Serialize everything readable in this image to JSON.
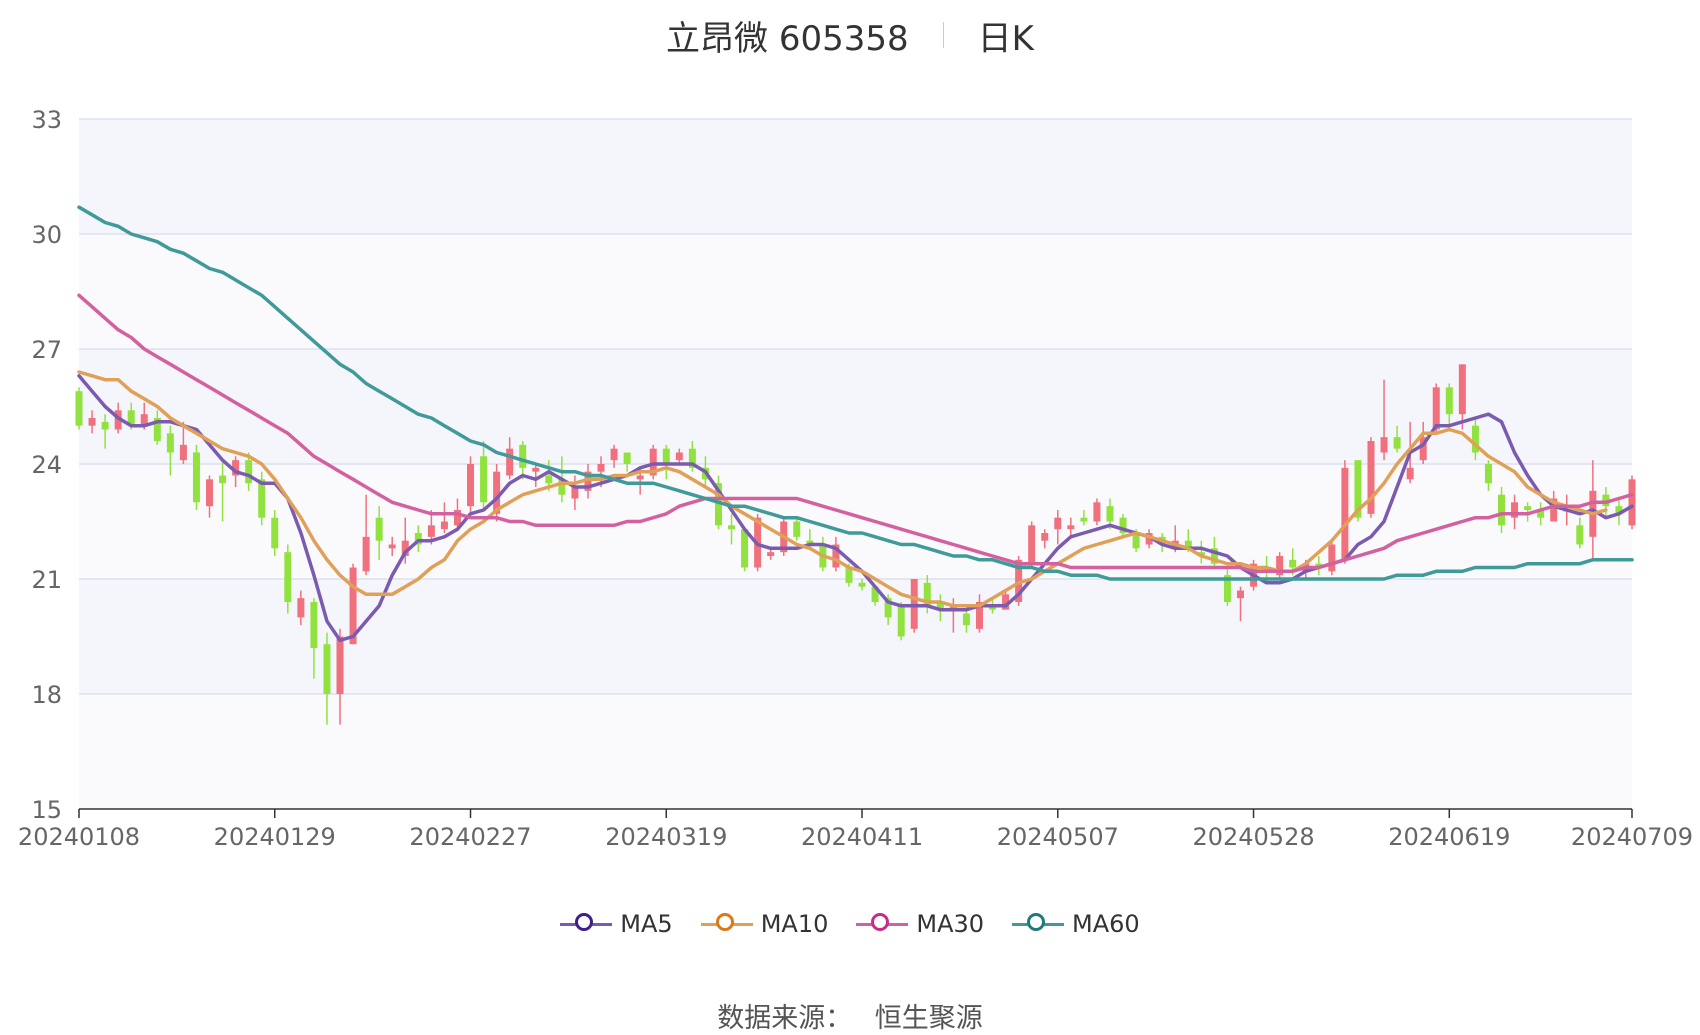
{
  "title": {
    "name": "立昂微 605358",
    "type": "日K"
  },
  "source": {
    "label": "数据来源：",
    "value": "恒生聚源"
  },
  "chart_data": {
    "type": "candlestick",
    "y_ticks": [
      "33",
      "30",
      "27",
      "24",
      "21",
      "18",
      "15"
    ],
    "ylim": [
      15,
      33
    ],
    "x_ticks": [
      {
        "i": 0,
        "label": "20240108"
      },
      {
        "i": 15,
        "label": "20240129"
      },
      {
        "i": 30,
        "label": "20240227"
      },
      {
        "i": 45,
        "label": "20240319"
      },
      {
        "i": 60,
        "label": "20240411"
      },
      {
        "i": 75,
        "label": "20240507"
      },
      {
        "i": 90,
        "label": "20240528"
      },
      {
        "i": 105,
        "label": "20240619"
      },
      {
        "i": 119,
        "label": "20240709"
      }
    ],
    "grid": true,
    "legend_position": "bottom",
    "colors": {
      "up": "#f0717d",
      "down": "#91e23e",
      "grid": "#dde0ef",
      "band": "#f5f6fb"
    },
    "candles": [
      [
        25.9,
        25.0,
        26.0,
        24.9
      ],
      [
        25.0,
        25.2,
        25.4,
        24.8
      ],
      [
        25.1,
        24.9,
        25.3,
        24.4
      ],
      [
        24.9,
        25.4,
        25.6,
        24.8
      ],
      [
        25.4,
        25.0,
        25.6,
        24.9
      ],
      [
        25.0,
        25.3,
        25.6,
        24.9
      ],
      [
        25.2,
        24.6,
        25.4,
        24.5
      ],
      [
        24.8,
        24.3,
        25.0,
        23.7
      ],
      [
        24.1,
        24.5,
        25.1,
        24.0
      ],
      [
        24.3,
        23.0,
        24.5,
        22.8
      ],
      [
        22.9,
        23.6,
        23.7,
        22.6
      ],
      [
        23.7,
        23.5,
        24.1,
        22.5
      ],
      [
        23.7,
        24.1,
        24.2,
        23.4
      ],
      [
        24.1,
        23.5,
        24.3,
        23.3
      ],
      [
        23.6,
        22.6,
        23.8,
        22.4
      ],
      [
        22.6,
        21.8,
        22.8,
        21.6
      ],
      [
        21.7,
        20.4,
        21.9,
        20.1
      ],
      [
        20.0,
        20.5,
        20.7,
        19.8
      ],
      [
        20.4,
        19.2,
        20.5,
        18.4
      ],
      [
        19.3,
        18.0,
        19.6,
        17.2
      ],
      [
        18.0,
        19.5,
        19.7,
        17.2
      ],
      [
        19.3,
        21.3,
        21.4,
        19.3
      ],
      [
        21.2,
        22.1,
        23.2,
        21.1
      ],
      [
        22.6,
        22.0,
        22.9,
        21.5
      ],
      [
        21.8,
        21.9,
        22.1,
        21.6
      ],
      [
        21.6,
        22.0,
        22.6,
        21.4
      ],
      [
        22.2,
        21.9,
        22.4,
        21.7
      ],
      [
        22.1,
        22.4,
        22.8,
        21.9
      ],
      [
        22.3,
        22.5,
        23.0,
        22.2
      ],
      [
        22.4,
        22.8,
        23.1,
        22.3
      ],
      [
        22.9,
        24.0,
        24.2,
        22.7
      ],
      [
        24.2,
        23.0,
        24.6,
        22.8
      ],
      [
        22.7,
        23.8,
        24.0,
        22.5
      ],
      [
        23.7,
        24.4,
        24.7,
        23.6
      ],
      [
        24.5,
        23.9,
        24.6,
        23.6
      ],
      [
        23.8,
        23.9,
        24.0,
        23.4
      ],
      [
        23.7,
        23.5,
        24.1,
        23.3
      ],
      [
        23.6,
        23.2,
        24.2,
        23.0
      ],
      [
        23.1,
        23.4,
        23.7,
        22.8
      ],
      [
        23.3,
        23.8,
        24.0,
        23.1
      ],
      [
        23.8,
        24.0,
        24.2,
        23.4
      ],
      [
        24.1,
        24.4,
        24.5,
        23.9
      ],
      [
        24.3,
        24.0,
        24.3,
        23.8
      ],
      [
        23.6,
        23.7,
        23.9,
        23.2
      ],
      [
        23.7,
        24.4,
        24.5,
        23.6
      ],
      [
        24.4,
        24.0,
        24.5,
        23.6
      ],
      [
        24.1,
        24.3,
        24.4,
        24.0
      ],
      [
        24.4,
        23.9,
        24.6,
        23.8
      ],
      [
        23.9,
        23.6,
        24.2,
        23.4
      ],
      [
        23.5,
        22.4,
        23.7,
        22.3
      ],
      [
        22.4,
        22.3,
        22.7,
        21.9
      ],
      [
        22.3,
        21.3,
        22.3,
        21.2
      ],
      [
        21.3,
        22.6,
        22.7,
        21.2
      ],
      [
        21.6,
        21.7,
        21.8,
        21.5
      ],
      [
        21.7,
        22.5,
        22.6,
        21.6
      ],
      [
        22.5,
        22.1,
        22.6,
        22.0
      ],
      [
        22.0,
        21.9,
        22.3,
        21.8
      ],
      [
        21.9,
        21.3,
        22.1,
        21.2
      ],
      [
        21.3,
        21.9,
        22.1,
        21.2
      ],
      [
        21.3,
        20.9,
        21.4,
        20.8
      ],
      [
        20.9,
        20.8,
        21.0,
        20.7
      ],
      [
        20.8,
        20.4,
        20.8,
        20.3
      ],
      [
        20.5,
        20.0,
        20.6,
        19.8
      ],
      [
        20.3,
        19.5,
        20.4,
        19.4
      ],
      [
        19.7,
        21.0,
        21.0,
        19.6
      ],
      [
        20.9,
        20.3,
        21.1,
        20.1
      ],
      [
        20.4,
        20.2,
        20.6,
        19.9
      ],
      [
        20.2,
        20.3,
        20.5,
        19.6
      ],
      [
        20.1,
        19.8,
        20.3,
        19.6
      ],
      [
        19.7,
        20.4,
        20.6,
        19.6
      ],
      [
        20.3,
        20.2,
        20.5,
        20.1
      ],
      [
        20.2,
        20.6,
        20.7,
        20.2
      ],
      [
        20.4,
        21.5,
        21.6,
        20.3
      ],
      [
        21.4,
        22.4,
        22.5,
        21.3
      ],
      [
        22.0,
        22.2,
        22.3,
        21.8
      ],
      [
        22.3,
        22.6,
        22.8,
        21.9
      ],
      [
        22.3,
        22.4,
        22.6,
        22.1
      ],
      [
        22.6,
        22.5,
        22.8,
        22.4
      ],
      [
        22.5,
        23.0,
        23.1,
        22.4
      ],
      [
        22.9,
        22.5,
        23.1,
        22.3
      ],
      [
        22.6,
        22.2,
        22.7,
        22.1
      ],
      [
        22.2,
        21.8,
        22.3,
        21.7
      ],
      [
        21.9,
        22.2,
        22.3,
        21.8
      ],
      [
        22.1,
        21.9,
        22.2,
        21.7
      ],
      [
        21.8,
        22.0,
        22.4,
        21.7
      ],
      [
        22.0,
        21.8,
        22.3,
        21.7
      ],
      [
        21.7,
        21.6,
        22.0,
        21.4
      ],
      [
        21.8,
        21.4,
        22.1,
        21.3
      ],
      [
        21.1,
        20.4,
        21.3,
        20.3
      ],
      [
        20.5,
        20.7,
        20.8,
        19.9
      ],
      [
        20.8,
        21.4,
        21.5,
        20.7
      ],
      [
        21.3,
        21.2,
        21.6,
        21.0
      ],
      [
        21.1,
        21.6,
        21.7,
        21.0
      ],
      [
        21.5,
        21.3,
        21.8,
        21.1
      ],
      [
        21.2,
        21.4,
        21.5,
        21.0
      ],
      [
        21.4,
        21.3,
        21.6,
        21.1
      ],
      [
        21.2,
        21.9,
        22.0,
        21.1
      ],
      [
        21.5,
        23.9,
        24.1,
        21.4
      ],
      [
        24.1,
        22.6,
        24.1,
        22.5
      ],
      [
        22.7,
        24.6,
        24.7,
        22.6
      ],
      [
        24.3,
        24.7,
        26.2,
        24.1
      ],
      [
        24.7,
        24.4,
        25.0,
        24.3
      ],
      [
        23.6,
        23.9,
        25.1,
        23.5
      ],
      [
        24.1,
        24.7,
        25.1,
        24.0
      ],
      [
        24.9,
        26.0,
        26.1,
        24.8
      ],
      [
        26.0,
        25.3,
        26.1,
        24.9
      ],
      [
        25.3,
        26.6,
        26.6,
        24.9
      ],
      [
        25.0,
        24.3,
        25.2,
        24.1
      ],
      [
        24.0,
        23.5,
        24.1,
        23.3
      ],
      [
        23.2,
        22.4,
        23.4,
        22.2
      ],
      [
        22.6,
        23.0,
        23.2,
        22.3
      ],
      [
        22.9,
        22.8,
        23.0,
        22.5
      ],
      [
        22.8,
        22.6,
        23.0,
        22.4
      ],
      [
        22.5,
        23.1,
        23.3,
        22.5
      ],
      [
        22.8,
        22.8,
        23.2,
        22.4
      ],
      [
        22.4,
        21.9,
        22.6,
        21.8
      ],
      [
        22.1,
        23.3,
        24.1,
        21.5
      ],
      [
        23.2,
        22.9,
        23.4,
        22.6
      ],
      [
        22.9,
        22.7,
        23.1,
        22.4
      ],
      [
        22.4,
        23.6,
        23.7,
        22.3
      ]
    ],
    "series": [
      {
        "name": "MA5",
        "color": "#7b5bb0",
        "values": [
          26.3,
          25.9,
          25.5,
          25.2,
          25.0,
          25.0,
          25.1,
          25.1,
          25.0,
          24.9,
          24.5,
          24.1,
          23.8,
          23.7,
          23.5,
          23.5,
          23.1,
          22.2,
          21.1,
          19.9,
          19.4,
          19.5,
          19.9,
          20.3,
          21.1,
          21.7,
          22.0,
          22.0,
          22.1,
          22.3,
          22.7,
          22.8,
          23.1,
          23.5,
          23.7,
          23.6,
          23.8,
          23.6,
          23.4,
          23.4,
          23.5,
          23.6,
          23.7,
          23.9,
          24.0,
          24.0,
          24.0,
          24.0,
          23.8,
          23.3,
          22.8,
          22.3,
          21.9,
          21.8,
          21.8,
          21.8,
          21.9,
          21.9,
          21.8,
          21.5,
          21.2,
          20.8,
          20.4,
          20.3,
          20.3,
          20.3,
          20.2,
          20.2,
          20.2,
          20.3,
          20.3,
          20.3,
          20.6,
          21.0,
          21.4,
          21.8,
          22.1,
          22.2,
          22.3,
          22.4,
          22.3,
          22.2,
          22.1,
          21.9,
          21.8,
          21.8,
          21.8,
          21.7,
          21.6,
          21.3,
          21.1,
          20.9,
          20.9,
          21.0,
          21.2,
          21.3,
          21.4,
          21.5,
          21.9,
          22.1,
          22.5,
          23.4,
          24.3,
          24.5,
          25.0,
          25.0,
          25.1,
          25.2,
          25.3,
          25.1,
          24.3,
          23.7,
          23.2,
          22.9,
          22.8,
          22.7,
          22.8,
          22.6,
          22.7,
          22.9
        ]
      },
      {
        "name": "MA10",
        "color": "#e0a058",
        "values": [
          26.4,
          26.3,
          26.2,
          26.2,
          25.9,
          25.7,
          25.5,
          25.2,
          25.0,
          24.8,
          24.6,
          24.4,
          24.3,
          24.2,
          24.0,
          23.6,
          23.1,
          22.6,
          22.0,
          21.5,
          21.1,
          20.8,
          20.6,
          20.6,
          20.6,
          20.8,
          21.0,
          21.3,
          21.5,
          22.0,
          22.3,
          22.5,
          22.8,
          23.0,
          23.2,
          23.3,
          23.4,
          23.5,
          23.5,
          23.6,
          23.6,
          23.7,
          23.7,
          23.8,
          23.8,
          23.9,
          23.8,
          23.6,
          23.4,
          23.2,
          22.9,
          22.7,
          22.5,
          22.3,
          22.1,
          21.9,
          21.8,
          21.6,
          21.5,
          21.3,
          21.2,
          21.0,
          20.8,
          20.6,
          20.5,
          20.4,
          20.4,
          20.3,
          20.3,
          20.3,
          20.5,
          20.7,
          20.9,
          21.0,
          21.2,
          21.4,
          21.6,
          21.8,
          21.9,
          22.0,
          22.1,
          22.2,
          22.1,
          22.0,
          21.9,
          21.8,
          21.6,
          21.5,
          21.4,
          21.4,
          21.3,
          21.3,
          21.2,
          21.2,
          21.4,
          21.7,
          22.0,
          22.4,
          22.8,
          23.1,
          23.5,
          24.0,
          24.4,
          24.8,
          24.8,
          24.9,
          24.8,
          24.5,
          24.2,
          24.0,
          23.8,
          23.4,
          23.2,
          23.0,
          22.9,
          22.8,
          22.7,
          22.8
        ]
      },
      {
        "name": "MA30",
        "color": "#d4619f",
        "values": [
          28.4,
          28.1,
          27.8,
          27.5,
          27.3,
          27.0,
          26.8,
          26.6,
          26.4,
          26.2,
          26.0,
          25.8,
          25.6,
          25.4,
          25.2,
          25.0,
          24.8,
          24.5,
          24.2,
          24.0,
          23.8,
          23.6,
          23.4,
          23.2,
          23.0,
          22.9,
          22.8,
          22.7,
          22.7,
          22.7,
          22.6,
          22.6,
          22.6,
          22.5,
          22.5,
          22.4,
          22.4,
          22.4,
          22.4,
          22.4,
          22.4,
          22.4,
          22.5,
          22.5,
          22.6,
          22.7,
          22.9,
          23.0,
          23.1,
          23.1,
          23.1,
          23.1,
          23.1,
          23.1,
          23.1,
          23.1,
          23.0,
          22.9,
          22.8,
          22.7,
          22.6,
          22.5,
          22.4,
          22.3,
          22.2,
          22.1,
          22.0,
          21.9,
          21.8,
          21.7,
          21.6,
          21.5,
          21.4,
          21.4,
          21.4,
          21.4,
          21.3,
          21.3,
          21.3,
          21.3,
          21.3,
          21.3,
          21.3,
          21.3,
          21.3,
          21.3,
          21.3,
          21.3,
          21.3,
          21.3,
          21.2,
          21.2,
          21.2,
          21.2,
          21.3,
          21.3,
          21.4,
          21.5,
          21.6,
          21.7,
          21.8,
          22.0,
          22.1,
          22.2,
          22.3,
          22.4,
          22.5,
          22.6,
          22.6,
          22.7,
          22.7,
          22.7,
          22.8,
          22.9,
          22.9,
          22.9,
          23.0,
          23.0,
          23.1,
          23.2
        ]
      },
      {
        "name": "MA60",
        "color": "#3f9a99",
        "values": [
          30.7,
          30.5,
          30.3,
          30.2,
          30.0,
          29.9,
          29.8,
          29.6,
          29.5,
          29.3,
          29.1,
          29.0,
          28.8,
          28.6,
          28.4,
          28.1,
          27.8,
          27.5,
          27.2,
          26.9,
          26.6,
          26.4,
          26.1,
          25.9,
          25.7,
          25.5,
          25.3,
          25.2,
          25.0,
          24.8,
          24.6,
          24.5,
          24.3,
          24.2,
          24.1,
          24.0,
          23.9,
          23.8,
          23.8,
          23.7,
          23.7,
          23.6,
          23.5,
          23.5,
          23.5,
          23.4,
          23.3,
          23.2,
          23.1,
          23.0,
          22.9,
          22.9,
          22.8,
          22.7,
          22.6,
          22.6,
          22.5,
          22.4,
          22.3,
          22.2,
          22.2,
          22.1,
          22.0,
          21.9,
          21.9,
          21.8,
          21.7,
          21.6,
          21.6,
          21.5,
          21.5,
          21.4,
          21.3,
          21.3,
          21.2,
          21.2,
          21.1,
          21.1,
          21.1,
          21.0,
          21.0,
          21.0,
          21.0,
          21.0,
          21.0,
          21.0,
          21.0,
          21.0,
          21.0,
          21.0,
          21.0,
          21.0,
          21.0,
          21.0,
          21.0,
          21.0,
          21.0,
          21.0,
          21.0,
          21.0,
          21.0,
          21.1,
          21.1,
          21.1,
          21.2,
          21.2,
          21.2,
          21.3,
          21.3,
          21.3,
          21.3,
          21.4,
          21.4,
          21.4,
          21.4,
          21.4,
          21.5,
          21.5,
          21.5,
          21.5
        ]
      }
    ]
  }
}
